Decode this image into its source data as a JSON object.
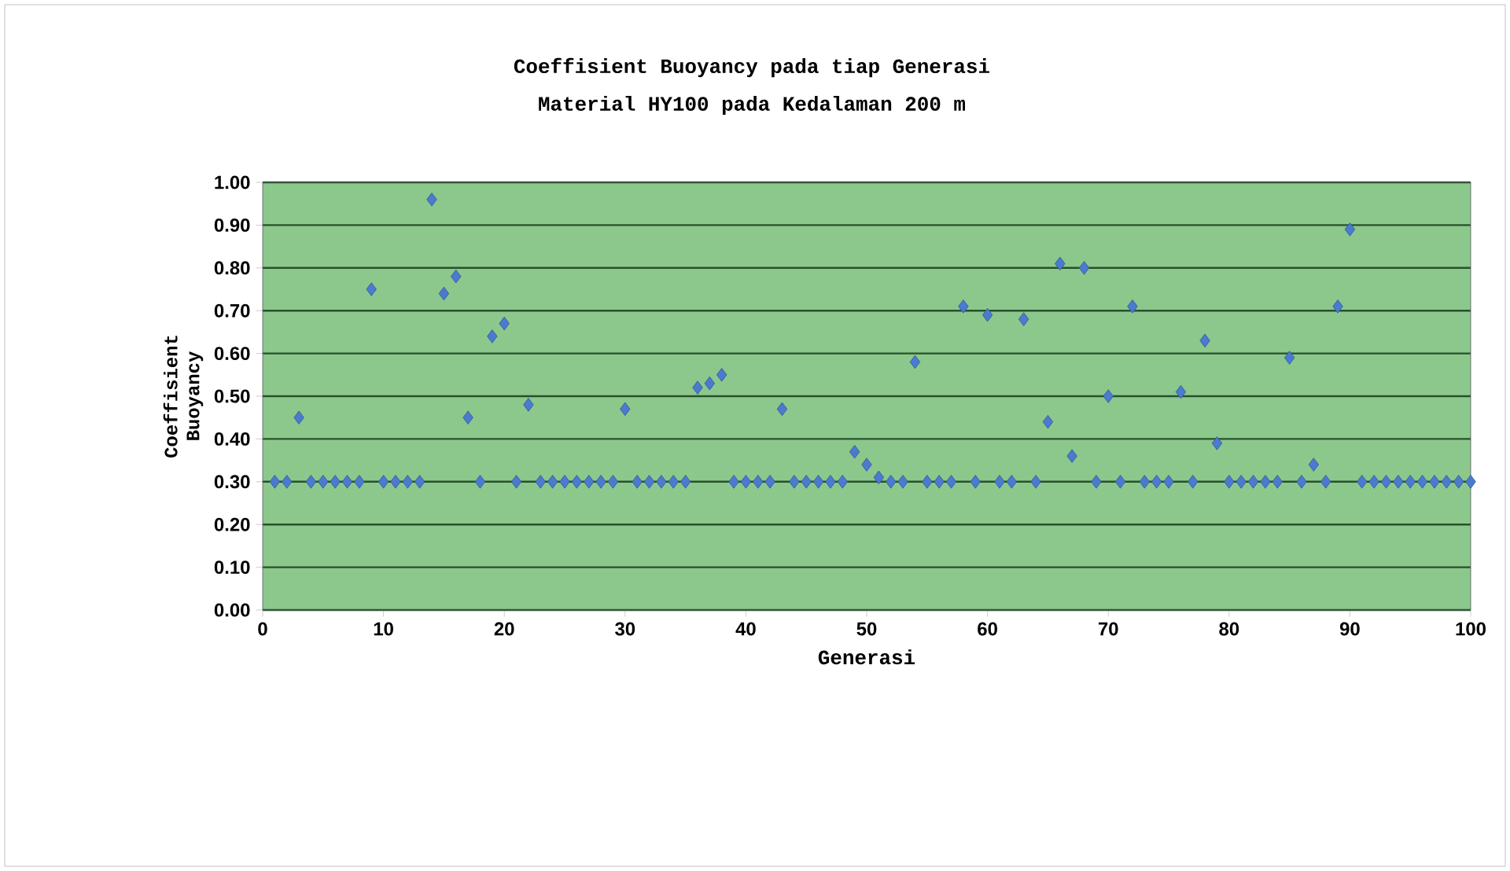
{
  "chart_data": {
    "type": "scatter",
    "title": "Coeffisient Buoyancy pada tiap Generasi",
    "subtitle": "Material HY100 pada Kedalaman 200 m",
    "xlabel": "Generasi",
    "ylabel": "Coeffisient Buoyancy",
    "x": [
      1,
      2,
      3,
      4,
      5,
      6,
      7,
      8,
      9,
      10,
      11,
      12,
      13,
      14,
      15,
      16,
      17,
      18,
      19,
      20,
      21,
      22,
      23,
      24,
      25,
      26,
      27,
      28,
      29,
      30,
      31,
      32,
      33,
      34,
      35,
      36,
      37,
      38,
      39,
      40,
      41,
      42,
      43,
      44,
      45,
      46,
      47,
      48,
      49,
      50,
      51,
      52,
      53,
      54,
      55,
      56,
      57,
      58,
      59,
      60,
      61,
      62,
      63,
      64,
      65,
      66,
      67,
      68,
      69,
      70,
      71,
      72,
      73,
      74,
      75,
      76,
      77,
      78,
      79,
      80,
      81,
      82,
      83,
      84,
      85,
      86,
      87,
      88,
      89,
      90,
      91,
      92,
      93,
      94,
      95,
      96,
      97,
      98,
      99,
      100
    ],
    "series": [
      {
        "color": "#4a7bd0",
        "values": [
          0.3,
          0.3,
          0.45,
          0.3,
          0.3,
          0.3,
          0.3,
          0.3,
          0.75,
          0.3,
          0.3,
          0.3,
          0.3,
          0.96,
          0.74,
          0.78,
          0.45,
          0.3,
          0.64,
          0.67,
          0.3,
          0.48,
          0.3,
          0.3,
          0.3,
          0.3,
          0.3,
          0.3,
          0.3,
          0.47,
          0.3,
          0.3,
          0.3,
          0.3,
          0.3,
          0.52,
          0.53,
          0.55,
          0.3,
          0.3,
          0.3,
          0.3,
          0.47,
          0.3,
          0.3,
          0.3,
          0.3,
          0.3,
          0.37,
          0.34,
          0.31,
          0.3,
          0.3,
          0.58,
          0.3,
          0.3,
          0.3,
          0.71,
          0.3,
          0.69,
          0.3,
          0.3,
          0.68,
          0.3,
          0.44,
          0.81,
          0.36,
          0.8,
          0.3,
          0.5,
          0.3,
          0.71,
          0.3,
          0.3,
          0.3,
          0.51,
          0.3,
          0.63,
          0.39,
          0.3,
          0.3,
          0.3,
          0.3,
          0.3,
          0.59,
          0.3,
          0.34,
          0.3,
          0.71,
          0.89,
          0.3,
          0.3,
          0.3,
          0.3,
          0.3,
          0.3,
          0.3,
          0.3,
          0.3,
          0.3
        ]
      }
    ],
    "xlim": [
      0,
      100
    ],
    "xticks": [
      0,
      10,
      20,
      30,
      40,
      50,
      60,
      70,
      80,
      90,
      100
    ],
    "ylim": [
      0,
      1
    ],
    "yticks": [
      {
        "value": 0,
        "label": "0.00"
      },
      {
        "value": 0.1,
        "label": "0.10"
      },
      {
        "value": 0.2,
        "label": "0.20"
      },
      {
        "value": 0.3,
        "label": "0.30"
      },
      {
        "value": 0.4,
        "label": "0.40"
      },
      {
        "value": 0.5,
        "label": "0.50"
      },
      {
        "value": 0.6,
        "label": "0.60"
      },
      {
        "value": 0.7,
        "label": "0.70"
      },
      {
        "value": 0.8,
        "label": "0.80"
      },
      {
        "value": 0.9,
        "label": "0.90"
      },
      {
        "value": 1.0,
        "label": "1.00"
      }
    ],
    "grid": "y",
    "marker": "diamond"
  }
}
